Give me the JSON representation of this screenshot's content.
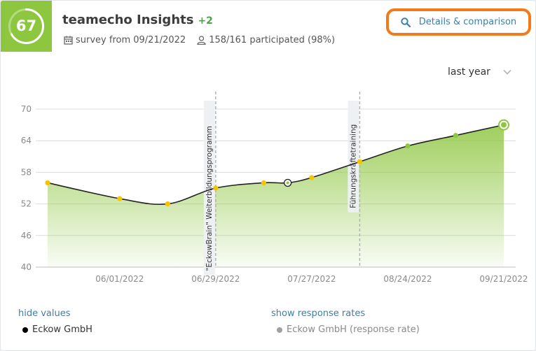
{
  "header": {
    "score": "67",
    "score_fraction": 0.67,
    "title": "teamecho Insights",
    "delta": "+2",
    "survey_text": "survey from 09/21/2022",
    "participation_text": "158/161 participated (98%)",
    "details_label": "Details & comparison"
  },
  "period": {
    "selected": "last year"
  },
  "colors": {
    "accent": "#8dc63f",
    "link": "#3d7fa6",
    "highlight": "#f27a1a",
    "point_yellow": "#f5c400",
    "point_green": "#8dc63f"
  },
  "chart_data": {
    "type": "area",
    "x": [
      "05/11/2022",
      "06/01/2022",
      "06/15/2022",
      "06/29/2022",
      "07/13/2022",
      "07/20/2022",
      "07/27/2022",
      "08/10/2022",
      "08/24/2022",
      "09/07/2022",
      "09/21/2022"
    ],
    "x_ticks": [
      "06/01/2022",
      "06/29/2022",
      "07/27/2022",
      "08/24/2022",
      "09/21/2022"
    ],
    "series": [
      {
        "name": "Eckow GmbH",
        "values": [
          56,
          53,
          52,
          55,
          56,
          56,
          57,
          60,
          63,
          65,
          67
        ]
      }
    ],
    "point_states": [
      "yellow",
      "yellow",
      "yellow",
      "yellow",
      "yellow",
      "selected",
      "yellow",
      "yellow",
      "green",
      "green",
      "current"
    ],
    "ylim": [
      40,
      70
    ],
    "y_ticks": [
      40,
      46,
      52,
      58,
      64,
      70
    ],
    "annotations": [
      {
        "date": "06/29/2022",
        "label": "\"EckowBrain\" Weiterbildungsprogramm"
      },
      {
        "date": "08/10/2022",
        "label": "Führungskräftetraining"
      }
    ],
    "grid": true
  },
  "footer": {
    "hide_values": "hide values",
    "show_response_rates": "show response rates",
    "legend_series": "Eckow GmbH",
    "legend_response": "Eckow GmbH (response rate)"
  }
}
